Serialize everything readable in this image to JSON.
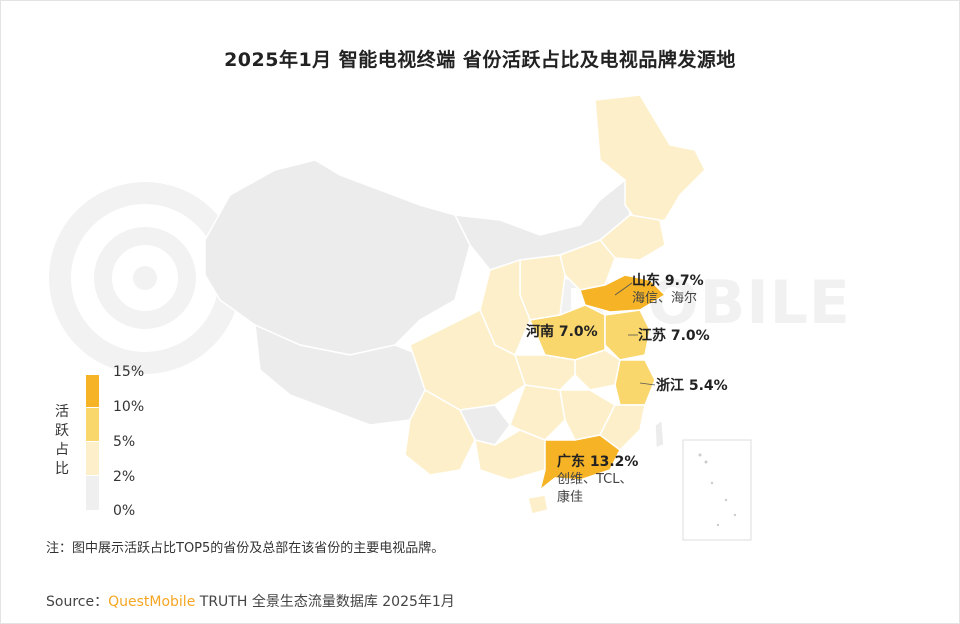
{
  "title": "2025年1月 智能电视终端 省份活跃占比及电视品牌发源地",
  "watermark": "TMOBILE",
  "legend": {
    "title": "活跃占比",
    "ticks": [
      "15%",
      "10%",
      "5%",
      "2%",
      "0%"
    ],
    "colors": [
      "#f5b325",
      "#fad76c",
      "#fdefc9",
      "#efefef"
    ]
  },
  "provinces": {
    "shandong": {
      "name": "山东 9.7%",
      "brands": "海信、海尔",
      "share": 9.7
    },
    "henan": {
      "name": "河南 7.0%",
      "share": 7.0
    },
    "jiangsu": {
      "name": "江苏 7.0%",
      "share": 7.0
    },
    "zhejiang": {
      "name": "浙江 5.4%",
      "share": 5.4
    },
    "guangdong": {
      "name": "广东 13.2%",
      "brands_line1": "创维、TCL、",
      "brands_line2": "康佳",
      "share": 13.2
    }
  },
  "note": "注：图中展示活跃占比TOP5的省份及总部在该省份的主要电视品牌。",
  "source": {
    "prefix": "Source：",
    "brand": "QuestMobile",
    "suffix": " TRUTH 全景生态流量数据库 2025年1月"
  }
}
